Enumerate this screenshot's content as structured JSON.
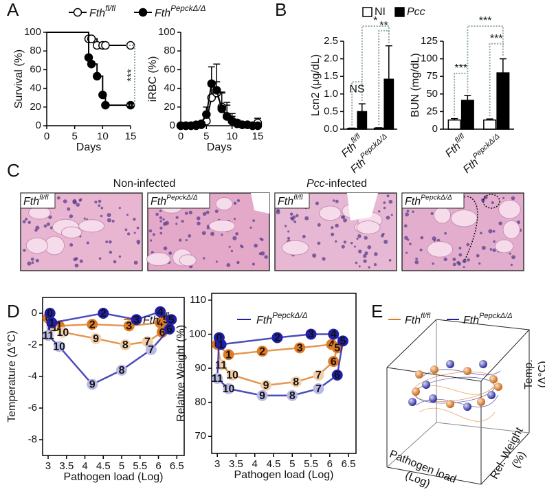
{
  "panel_letters": [
    "A",
    "B",
    "C",
    "D",
    "E"
  ],
  "chart_data": [
    {
      "type": "step",
      "xlabel": "Days",
      "ylabel": "Survival (%)",
      "x": [
        0,
        7.5,
        8,
        9,
        10,
        10.5,
        15
      ],
      "series": [
        {
          "name": "Fth",
          "superscript": "fl/fl",
          "marker": "open",
          "color": "#000000",
          "values": [
            100,
            93,
            93,
            86,
            86,
            86,
            86
          ]
        },
        {
          "name": "Fth",
          "superscript": "PepckΔ/Δ",
          "marker": "filled",
          "color": "#000000",
          "values": [
            100,
            73,
            66,
            53,
            33,
            22,
            22
          ]
        }
      ],
      "xlim": [
        0,
        15
      ],
      "xticks": [
        0,
        5,
        10,
        15
      ],
      "ylim": [
        0,
        100
      ],
      "yticks": [
        0,
        20,
        40,
        60,
        80,
        100
      ],
      "annotations": [
        "***"
      ]
    },
    {
      "type": "line",
      "xlabel": "Days",
      "ylabel": "iRBC (%)",
      "x": [
        0,
        1,
        2,
        3,
        4,
        5,
        6,
        7,
        8,
        9,
        10,
        11,
        12,
        13,
        14,
        15
      ],
      "series": [
        {
          "marker": "open",
          "color": "#000000",
          "values": [
            0,
            0,
            0,
            0,
            1,
            5,
            30,
            35,
            20,
            10,
            5,
            3,
            1,
            1,
            0,
            3
          ],
          "errors": [
            0,
            0,
            0,
            0,
            1,
            5,
            15,
            12,
            15,
            12,
            5,
            3,
            2,
            2,
            1,
            5
          ]
        },
        {
          "marker": "filled",
          "color": "#000000",
          "values": [
            0,
            0,
            0,
            1,
            2,
            12,
            45,
            38,
            18,
            10,
            5,
            2,
            1,
            1,
            0,
            0
          ],
          "errors": [
            0,
            0,
            0,
            1,
            2,
            8,
            18,
            28,
            18,
            15,
            8,
            3,
            2,
            1,
            1,
            0
          ]
        }
      ],
      "xlim": [
        0,
        15
      ],
      "xticks": [
        0,
        5,
        10,
        15
      ],
      "ylim": [
        0,
        100
      ],
      "yticks": [
        0,
        20,
        40,
        60,
        80,
        100
      ]
    },
    {
      "type": "bar",
      "ylabel": "Lcn2 (μg/dL)",
      "categories": [
        "Fth",
        "Fth"
      ],
      "category_superscripts": [
        "fl/fl",
        "PepckΔ/Δ"
      ],
      "series": [
        {
          "name": "NI",
          "color": "#ffffff",
          "values": [
            0.02,
            0.03
          ],
          "errors": [
            0.01,
            0.01
          ]
        },
        {
          "name": "Pcc",
          "color": "#000000",
          "values": [
            0.5,
            1.42
          ],
          "errors": [
            0.22,
            0.95
          ]
        }
      ],
      "ylim": [
        0,
        2.5
      ],
      "yticks": [
        {
          "value": 0,
          "label": "0.0"
        },
        0.5,
        {
          "value": 1,
          "label": "1.0"
        },
        1.5,
        {
          "value": 2,
          "label": "2.0"
        },
        2.5
      ],
      "annotations": [
        "NS",
        "**",
        "*"
      ]
    },
    {
      "type": "bar",
      "ylabel": "BUN (mg/dL)",
      "categories": [
        "Fth",
        "Fth"
      ],
      "category_superscripts": [
        "fl/fl",
        "PepckΔ/Δ"
      ],
      "series": [
        {
          "color": "#ffffff",
          "values": [
            13,
            13
          ],
          "errors": [
            2,
            1.5
          ]
        },
        {
          "color": "#000000",
          "values": [
            41,
            80
          ],
          "errors": [
            7,
            20
          ]
        }
      ],
      "ylim": [
        0,
        125
      ],
      "yticks": [
        0,
        25,
        50,
        75,
        100,
        125
      ],
      "annotations": [
        "***",
        "***",
        "***"
      ]
    },
    {
      "type": "scatter",
      "xlabel": "Pathogen load (Log)",
      "ylabel": "Temperature (Δ°C)",
      "series": [
        {
          "name": "Fth",
          "superscript": "fl/fl",
          "color": "#e07b24",
          "faded_color": "#f3cfa8",
          "labels": [
            0,
            1,
            2,
            3,
            4,
            5,
            6,
            7,
            8,
            9,
            10,
            11
          ],
          "x": [
            3.0,
            3.3,
            4.2,
            5.2,
            6.05,
            6.2,
            6.1,
            5.7,
            5.1,
            4.3,
            3.4,
            3.1
          ],
          "values": [
            -0.3,
            -0.8,
            -0.7,
            -0.8,
            -0.6,
            -0.4,
            -1.2,
            -1.8,
            -2.0,
            -1.6,
            -1.2,
            -0.9
          ]
        },
        {
          "name": "Fth",
          "superscript": "PepckΔ/Δ",
          "color": "#1f1fa8",
          "faded_color": "#b9b9e8",
          "labels": [
            0,
            1,
            2,
            3,
            4,
            5,
            6,
            7,
            8,
            9,
            10,
            11
          ],
          "x": [
            3.05,
            3.1,
            4.5,
            5.4,
            6.05,
            6.35,
            6.3,
            5.8,
            5.0,
            4.2,
            3.3,
            3.0
          ],
          "values": [
            0,
            -0.6,
            0,
            -0.4,
            0.1,
            -0.4,
            -1.0,
            -2.3,
            -3.6,
            -4.5,
            -2.1,
            -1.4
          ]
        }
      ],
      "xlim": [
        2.85,
        6.7
      ],
      "xticks": [
        3,
        3.5,
        4,
        4.5,
        5,
        5.5,
        6,
        6.5
      ],
      "ylim": [
        -9,
        1
      ],
      "yticks": [
        0,
        -2,
        -4,
        -6,
        -8
      ]
    },
    {
      "type": "scatter",
      "xlabel": "Pathogen load (Log)",
      "ylabel": "Relative Weight (%)",
      "series": [
        {
          "color": "#e07b24",
          "faded_color": "#f3cfa8",
          "labels": [
            0,
            1,
            2,
            3,
            4,
            5,
            6,
            7,
            8,
            9,
            10,
            11
          ],
          "x": [
            3.0,
            3.3,
            4.2,
            5.2,
            6.05,
            6.2,
            6.1,
            5.7,
            5.1,
            4.3,
            3.4,
            3.1
          ],
          "values": [
            97,
            94,
            95,
            96,
            97,
            96,
            92,
            88,
            86,
            85,
            88,
            91
          ]
        },
        {
          "color": "#1f1fa8",
          "faded_color": "#b9b9e8",
          "labels": [
            0,
            1,
            2,
            3,
            4,
            5,
            6,
            7,
            8,
            9,
            10,
            11
          ],
          "x": [
            3.05,
            3.1,
            4.6,
            5.5,
            6.1,
            6.35,
            6.2,
            5.7,
            5.0,
            4.2,
            3.3,
            3.0
          ],
          "values": [
            99,
            97,
            99,
            100,
            100,
            98,
            88,
            84,
            82,
            82,
            84,
            87
          ]
        }
      ],
      "xlim": [
        2.85,
        6.7
      ],
      "xticks": [
        3,
        3.5,
        4,
        4.5,
        5,
        5.5,
        6,
        6.5
      ],
      "ylim": [
        65,
        112
      ],
      "yticks": [
        70,
        80,
        90,
        100,
        110
      ]
    }
  ],
  "histology": {
    "titles": [
      {
        "text": "Non-infected"
      },
      {
        "italic": "Pcc",
        "text": "-infected"
      }
    ],
    "images": [
      {
        "name": "Fth",
        "superscript": "fl/fl"
      },
      {
        "name": "Fth",
        "superscript": "PepckΔ/Δ"
      },
      {
        "name": "Fth",
        "superscript": "fl/fl"
      },
      {
        "name": "Fth",
        "superscript": "PepckΔ/Δ"
      }
    ]
  },
  "panel_e": {
    "legend": [
      {
        "name": "Fth",
        "superscript": "fl/fl"
      },
      {
        "name": "Fth",
        "superscript": "PepckΔ/Δ"
      }
    ],
    "axis_labels": {
      "z": [
        "Temp.",
        "(Δ°C)"
      ],
      "y": [
        "Rel. Weight",
        "(%)"
      ],
      "x": [
        "Pathogen load",
        "(Log)"
      ]
    }
  }
}
